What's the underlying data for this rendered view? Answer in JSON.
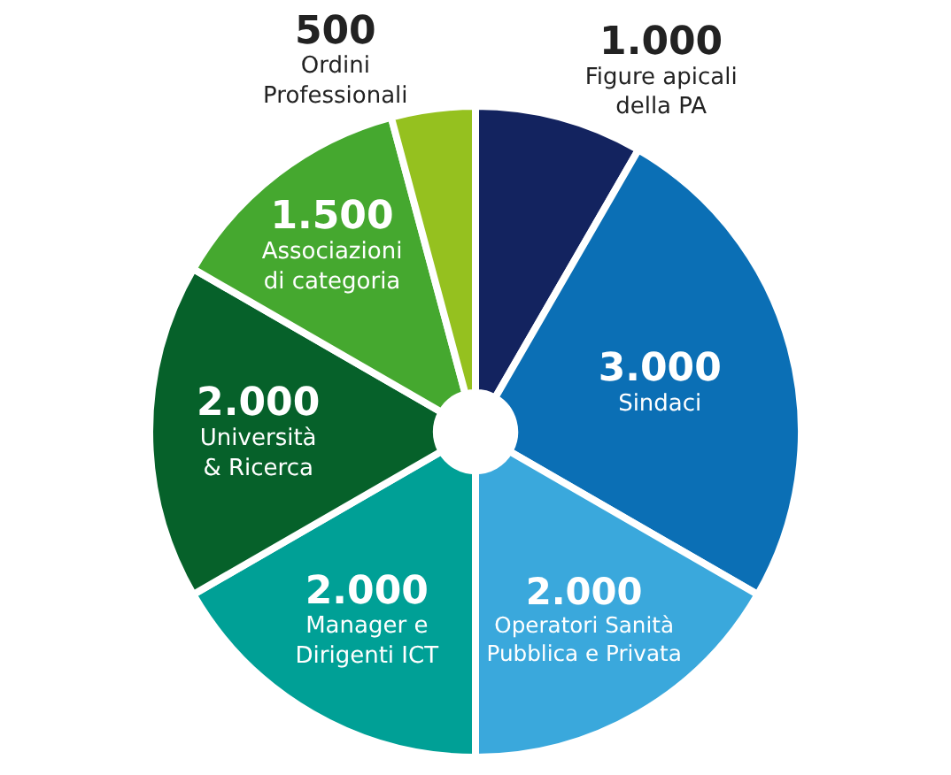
{
  "chart_data": {
    "type": "pie",
    "categories": [
      "Figure apicali della PA",
      "Sindaci",
      "Operatori Sanità Pubblica e Privata",
      "Manager e Dirigenti ICT",
      "Università & Ricerca",
      "Associazioni di categoria",
      "Ordini Professionali"
    ],
    "values": [
      1000,
      3000,
      2000,
      2000,
      2000,
      1500,
      500
    ],
    "value_labels": [
      "1.000",
      "3.000",
      "2.000",
      "2.000",
      "2.000",
      "1.500",
      "500"
    ],
    "colors": [
      "#13235f",
      "#0b6fb5",
      "#3aa8dc",
      "#00a096",
      "#06612a",
      "#45a82f",
      "#95c11f"
    ],
    "legend": false
  }
}
